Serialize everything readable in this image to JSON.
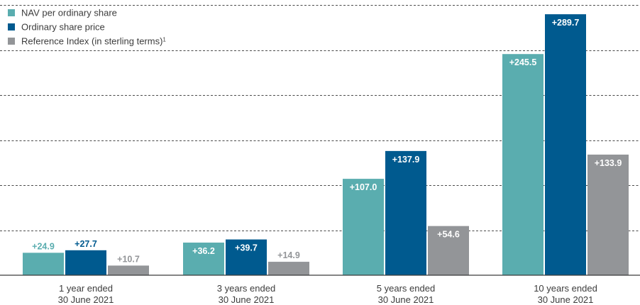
{
  "chart_data": {
    "type": "bar",
    "categories": [
      [
        "1 year ended",
        "30 June 2021"
      ],
      [
        "3 years ended",
        "30 June 2021"
      ],
      [
        "5 years ended",
        "30 June 2021"
      ],
      [
        "10 years ended",
        "30 June 2021"
      ]
    ],
    "series": [
      {
        "name": "NAV per ordinary share",
        "color": "#5aadaf",
        "values": [
          24.9,
          36.2,
          107.0,
          245.5
        ],
        "labels": [
          "+24.9",
          "+36.2",
          "+107.0",
          "+245.5"
        ]
      },
      {
        "name": "Ordinary share price",
        "color": "#005a8f",
        "values": [
          27.7,
          39.7,
          137.9,
          289.7
        ],
        "labels": [
          "+27.7",
          "+39.7",
          "+137.9",
          "+289.7"
        ]
      },
      {
        "name": "Reference Index (in sterling terms)",
        "superscript": "1",
        "color": "#939598",
        "values": [
          10.7,
          14.9,
          54.6,
          133.9
        ],
        "labels": [
          "+10.7",
          "+14.9",
          "+54.6",
          "+133.9"
        ]
      }
    ],
    "ylim": [
      0,
      300
    ],
    "grid": "dashed horizontal",
    "legend_position": "top-left"
  }
}
